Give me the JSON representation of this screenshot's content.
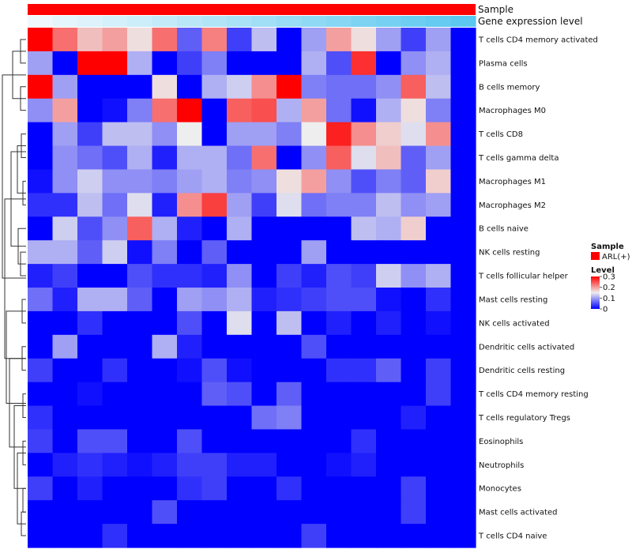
{
  "chart_data": {
    "type": "heatmap",
    "annotation_rows": [
      "Sample",
      "Gene expression level"
    ],
    "annotation_colors": {
      "sample": "#ff0000",
      "gene_expression_low": "#eef8fd",
      "gene_expression_high": "#5cc8f0"
    },
    "row_labels": [
      "T cells CD4 memory activated",
      "Plasma cells",
      "B cells memory",
      "Macrophages M0",
      "T cells CD8",
      "T cells gamma delta",
      "Macrophages M1",
      "Macrophages M2",
      "B cells naive",
      "NK cells resting",
      "T cells follicular helper",
      "Mast cells resting",
      "NK cells activated",
      "Dendritic cells activated",
      "Dendritic cells resting",
      "T cells CD4 memory resting",
      "T cells regulatory  Tregs",
      "Eosinophils",
      "Neutrophils",
      "Monocytes",
      "Mast cells activated",
      "T cells CD4 naive"
    ],
    "n_columns": 18,
    "values": [
      [
        0.3,
        0.23,
        0.18,
        0.2,
        0.16,
        0.23,
        0.06,
        0.22,
        0.04,
        0.12,
        0.0,
        0.1,
        0.2,
        0.16,
        0.1,
        0.04,
        0.1,
        0.0
      ],
      [
        0.1,
        0.0,
        0.3,
        0.3,
        0.11,
        0.0,
        0.04,
        0.08,
        0.0,
        0.0,
        0.0,
        0.11,
        0.05,
        0.27,
        0.0,
        0.09,
        0.11,
        0.0
      ],
      [
        0.3,
        0.1,
        0.0,
        0.0,
        0.0,
        0.16,
        0.0,
        0.11,
        0.13,
        0.21,
        0.3,
        0.08,
        0.07,
        0.07,
        0.09,
        0.24,
        0.12,
        0.0
      ],
      [
        0.09,
        0.2,
        0.0,
        0.01,
        0.08,
        0.23,
        0.3,
        0.0,
        0.24,
        0.25,
        0.11,
        0.2,
        0.07,
        0.01,
        0.11,
        0.16,
        0.08,
        0.0
      ],
      [
        0.0,
        0.1,
        0.04,
        0.12,
        0.12,
        0.09,
        0.15,
        0.0,
        0.1,
        0.1,
        0.08,
        0.15,
        0.28,
        0.21,
        0.17,
        0.14,
        0.21,
        0.0
      ],
      [
        0.0,
        0.09,
        0.07,
        0.05,
        0.11,
        0.02,
        0.11,
        0.11,
        0.07,
        0.23,
        0.0,
        0.09,
        0.24,
        0.14,
        0.18,
        0.06,
        0.1,
        0.0
      ],
      [
        0.01,
        0.09,
        0.13,
        0.09,
        0.09,
        0.08,
        0.1,
        0.11,
        0.08,
        0.09,
        0.16,
        0.2,
        0.09,
        0.05,
        0.08,
        0.06,
        0.17,
        0.0
      ],
      [
        0.03,
        0.03,
        0.12,
        0.07,
        0.14,
        0.02,
        0.21,
        0.26,
        0.1,
        0.04,
        0.14,
        0.07,
        0.08,
        0.08,
        0.12,
        0.09,
        0.1,
        0.0
      ],
      [
        0.0,
        0.13,
        0.05,
        0.09,
        0.24,
        0.11,
        0.02,
        0.0,
        0.11,
        0.0,
        0.0,
        0.0,
        0.0,
        0.12,
        0.11,
        0.17,
        0.0,
        0.0
      ],
      [
        0.11,
        0.11,
        0.06,
        0.13,
        0.01,
        0.08,
        0.0,
        0.06,
        0.0,
        0.0,
        0.0,
        0.1,
        0.0,
        0.0,
        0.0,
        0.0,
        0.0,
        0.0
      ],
      [
        0.02,
        0.04,
        0.0,
        0.0,
        0.05,
        0.03,
        0.03,
        0.02,
        0.09,
        0.0,
        0.04,
        0.02,
        0.05,
        0.04,
        0.13,
        0.09,
        0.11,
        0.0
      ],
      [
        0.07,
        0.02,
        0.11,
        0.11,
        0.06,
        0.0,
        0.1,
        0.09,
        0.11,
        0.02,
        0.03,
        0.04,
        0.05,
        0.05,
        0.01,
        0.0,
        0.03,
        0.0
      ],
      [
        0.0,
        0.0,
        0.03,
        0.0,
        0.0,
        0.0,
        0.05,
        0.0,
        0.14,
        0.0,
        0.12,
        0.0,
        0.02,
        0.0,
        0.02,
        0.0,
        0.01,
        0.0
      ],
      [
        0.0,
        0.1,
        0.0,
        0.0,
        0.0,
        0.11,
        0.02,
        0.0,
        0.0,
        0.0,
        0.0,
        0.05,
        0.0,
        0.0,
        0.0,
        0.0,
        0.0,
        0.0
      ],
      [
        0.04,
        0.0,
        0.0,
        0.03,
        0.0,
        0.0,
        0.01,
        0.05,
        0.01,
        0.0,
        0.0,
        0.0,
        0.03,
        0.03,
        0.06,
        0.0,
        0.04,
        0.0
      ],
      [
        0.0,
        0.0,
        0.01,
        0.0,
        0.0,
        0.0,
        0.0,
        0.06,
        0.05,
        0.0,
        0.06,
        0.0,
        0.0,
        0.0,
        0.0,
        0.0,
        0.04,
        0.0
      ],
      [
        0.03,
        0.0,
        0.0,
        0.0,
        0.0,
        0.0,
        0.0,
        0.0,
        0.0,
        0.07,
        0.08,
        0.0,
        0.0,
        0.0,
        0.0,
        0.02,
        0.0,
        0.0
      ],
      [
        0.04,
        0.0,
        0.05,
        0.05,
        0.0,
        0.0,
        0.05,
        0.0,
        0.0,
        0.0,
        0.0,
        0.0,
        0.0,
        0.03,
        0.0,
        0.0,
        0.0,
        0.0
      ],
      [
        0.0,
        0.02,
        0.03,
        0.02,
        0.01,
        0.02,
        0.04,
        0.04,
        0.02,
        0.02,
        0.0,
        0.0,
        0.01,
        0.02,
        0.0,
        0.0,
        0.0,
        0.0
      ],
      [
        0.04,
        0.0,
        0.02,
        0.0,
        0.0,
        0.0,
        0.03,
        0.04,
        0.0,
        0.0,
        0.03,
        0.0,
        0.0,
        0.0,
        0.0,
        0.04,
        0.0,
        0.0
      ],
      [
        0.0,
        0.0,
        0.0,
        0.0,
        0.0,
        0.05,
        0.0,
        0.0,
        0.0,
        0.0,
        0.0,
        0.0,
        0.0,
        0.0,
        0.0,
        0.04,
        0.0,
        0.0
      ],
      [
        0.0,
        0.0,
        0.0,
        0.03,
        0.0,
        0.0,
        0.0,
        0.0,
        0.0,
        0.0,
        0.0,
        0.04,
        0.0,
        0.0,
        0.0,
        0.0,
        0.0,
        0.0
      ]
    ],
    "color_scale": {
      "min": 0,
      "mid": 0.15,
      "max": 0.3,
      "low_color": "#0000ff",
      "mid_color": "#eeeeee",
      "high_color": "#ff0000"
    },
    "legend": {
      "sample_title": "Sample",
      "sample_entry": "ARL(+)",
      "level_title": "Level",
      "level_ticks": [
        "0.3",
        "0.2",
        "0.1",
        "0"
      ],
      "level_tick_values": [
        0.3,
        0.2,
        0.1,
        0
      ],
      "position": "right"
    }
  }
}
